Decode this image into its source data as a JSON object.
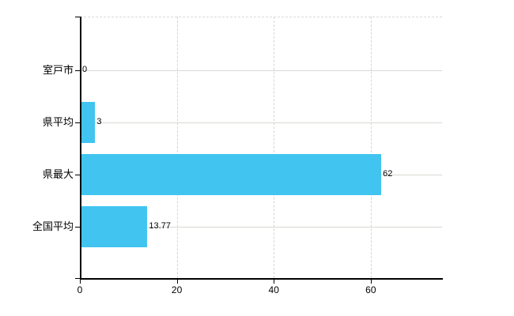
{
  "chart_data": {
    "type": "bar",
    "orientation": "horizontal",
    "title": "",
    "xlabel": "",
    "ylabel": "",
    "categories": [
      "室戸市",
      "県平均",
      "県最大",
      "全国平均"
    ],
    "values": [
      0,
      3,
      62,
      13.77
    ],
    "value_labels": [
      "0",
      "3",
      "62",
      "13.77"
    ],
    "x_ticks": [
      0,
      20,
      40,
      60
    ],
    "x_tick_labels": [
      "0",
      "20",
      "40",
      "60"
    ],
    "xlim": [
      0,
      74.7
    ],
    "grid": true,
    "legend": false,
    "colors": {
      "bar": "#41c4f0",
      "grid_horizontal": "#d6dad2",
      "grid_vertical": "#d4d8d2",
      "axis": "#000000",
      "text": "#000000",
      "background": "#ffffff"
    }
  }
}
